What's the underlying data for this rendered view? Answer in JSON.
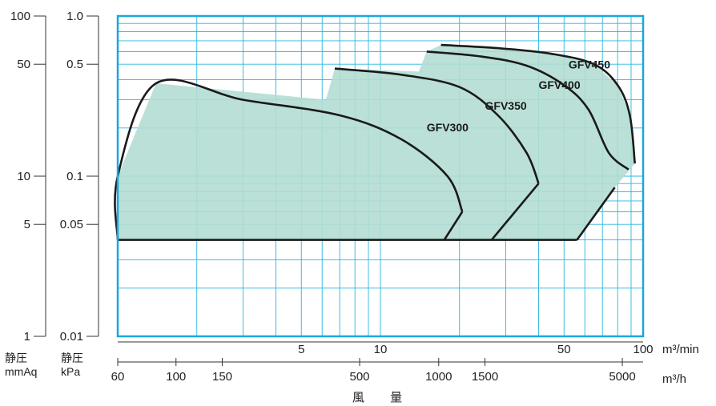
{
  "chart_data": {
    "type": "area",
    "title": "",
    "xlabel": "風 量",
    "x_unit_top": "m³/min",
    "x_unit_bottom": "m³/h",
    "x_scale": "log",
    "xlim_m3min": [
      1,
      100
    ],
    "x_ticks_top": [
      {
        "value": 5,
        "label": "5"
      },
      {
        "value": 10,
        "label": "10"
      },
      {
        "value": 50,
        "label": "50"
      },
      {
        "value": 100,
        "label": "100"
      }
    ],
    "x_ticks_bottom": [
      {
        "value": 60,
        "label": "60"
      },
      {
        "value": 100,
        "label": "100"
      },
      {
        "value": 150,
        "label": "150"
      },
      {
        "value": 500,
        "label": "500"
      },
      {
        "value": 1000,
        "label": "1000"
      },
      {
        "value": 1500,
        "label": "1500"
      },
      {
        "value": 5000,
        "label": "5000"
      }
    ],
    "y_scale": "log",
    "ylim_kpa": [
      0.01,
      1.0
    ],
    "y_axis_kpa": {
      "label": "静圧",
      "unit": "kPa",
      "ticks": [
        {
          "value": 1.0,
          "label": "1.0"
        },
        {
          "value": 0.5,
          "label": "0.5"
        },
        {
          "value": 0.1,
          "label": "0.1"
        },
        {
          "value": 0.05,
          "label": "0.05"
        },
        {
          "value": 0.01,
          "label": "0.01"
        }
      ]
    },
    "y_axis_mmaq": {
      "label": "静圧",
      "unit": "mmAq",
      "ticks": [
        {
          "value": 100,
          "label": "100"
        },
        {
          "value": 50,
          "label": "50"
        },
        {
          "value": 10,
          "label": "10"
        },
        {
          "value": 5,
          "label": "5"
        },
        {
          "value": 1,
          "label": "1"
        }
      ]
    },
    "grid": true,
    "series": [
      {
        "name": "GFV300",
        "label_at": [
          15,
          0.19
        ],
        "points": [
          [
            1,
            0.04
          ],
          [
            1,
            0.1
          ],
          [
            1.4,
            0.38
          ],
          [
            3,
            0.3
          ],
          [
            7,
            0.24
          ],
          [
            12,
            0.17
          ],
          [
            18,
            0.1
          ],
          [
            20.5,
            0.06
          ]
        ]
      },
      {
        "name": "GFV350",
        "label_at": [
          25,
          0.26
        ],
        "points": [
          [
            6.7,
            0.47
          ],
          [
            12,
            0.43
          ],
          [
            20,
            0.36
          ],
          [
            28,
            0.24
          ],
          [
            36,
            0.14
          ],
          [
            40,
            0.09
          ]
        ]
      },
      {
        "name": "GFV400",
        "label_at": [
          40,
          0.35
        ],
        "points": [
          [
            15,
            0.6
          ],
          [
            24,
            0.56
          ],
          [
            36,
            0.49
          ],
          [
            50,
            0.37
          ],
          [
            62,
            0.26
          ],
          [
            74,
            0.14
          ],
          [
            88,
            0.11
          ]
        ]
      },
      {
        "name": "GFV450",
        "label_at": [
          52,
          0.47
        ],
        "points": [
          [
            17,
            0.66
          ],
          [
            28,
            0.63
          ],
          [
            45,
            0.58
          ],
          [
            65,
            0.5
          ],
          [
            80,
            0.37
          ],
          [
            89,
            0.24
          ],
          [
            93,
            0.12
          ]
        ]
      }
    ],
    "region": {
      "fill": "#b3ddd3",
      "boundary": [
        [
          1,
          0.04
        ],
        [
          1,
          0.1
        ],
        [
          1.4,
          0.38
        ],
        [
          6.2,
          0.3
        ],
        [
          6.7,
          0.47
        ],
        [
          14,
          0.45
        ],
        [
          15,
          0.6
        ],
        [
          17,
          0.66
        ],
        [
          28,
          0.63
        ],
        [
          45,
          0.58
        ],
        [
          65,
          0.5
        ],
        [
          80,
          0.37
        ],
        [
          89,
          0.24
        ],
        [
          93,
          0.12
        ],
        [
          78,
          0.085
        ],
        [
          56,
          0.04
        ]
      ]
    },
    "colors": {
      "grid": "#2bb5e0",
      "frame": "#1aa8dc",
      "curve": "#1a1a1a",
      "fill": "#b3ddd3"
    }
  }
}
